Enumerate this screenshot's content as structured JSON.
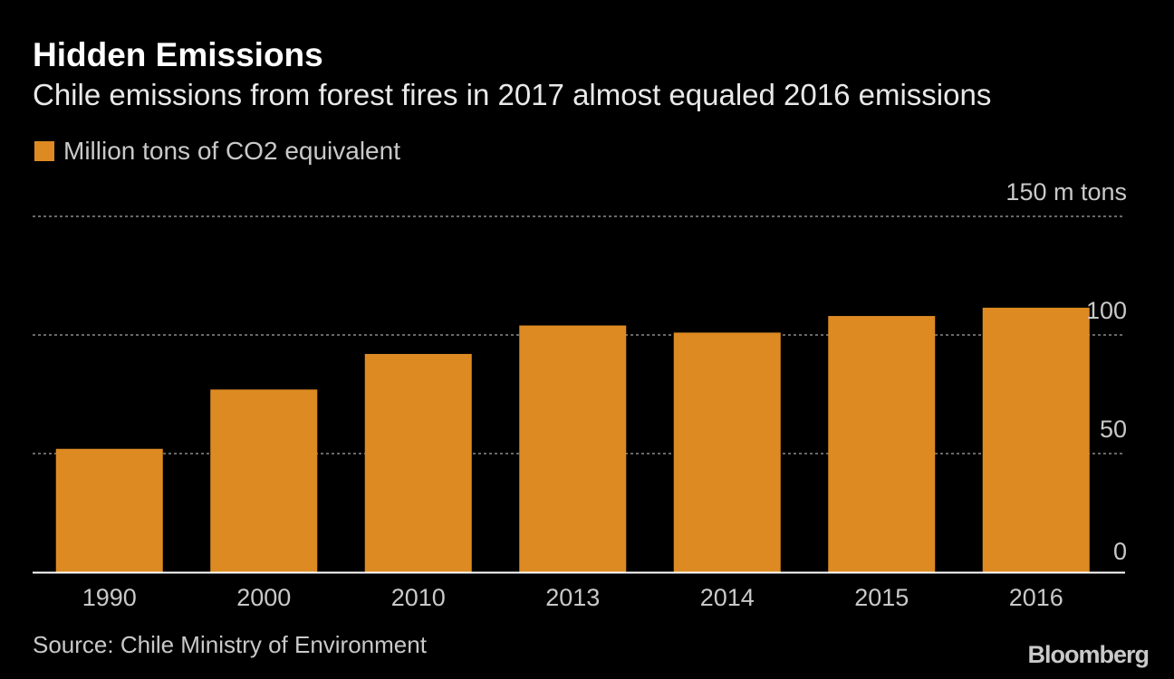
{
  "title": "Hidden Emissions",
  "subtitle": "Chile emissions from forest fires in 2017 almost equaled 2016 emissions",
  "legend": {
    "label": "Million tons of CO2 equivalent"
  },
  "colors": {
    "background": "#000000",
    "bar": "#dd8a22",
    "text": "#ffffff",
    "muted_text": "#c9c9c9",
    "gridline": "#8a8a8a"
  },
  "chart_data": {
    "type": "bar",
    "title": "Hidden Emissions",
    "subtitle": "Chile emissions from forest fires in 2017 almost equaled 2016 emissions",
    "xlabel": "",
    "ylabel": "Million tons of CO2 equivalent",
    "categories": [
      "1990",
      "2000",
      "2010",
      "2013",
      "2014",
      "2015",
      "2016"
    ],
    "series": [
      {
        "name": "Million tons of CO2 equivalent",
        "values": [
          52,
          77,
          92,
          104,
          101,
          108,
          111.5
        ]
      }
    ],
    "ylim": [
      0,
      150
    ],
    "yticks": [
      {
        "value": 0,
        "label": "0"
      },
      {
        "value": 50,
        "label": "50"
      },
      {
        "value": 100,
        "label": "100"
      },
      {
        "value": 150,
        "label": "150 m tons"
      }
    ],
    "grid": true,
    "legend_position": "top-left"
  },
  "source": "Source: Chile Ministry of Environment",
  "brand": "Bloomberg"
}
